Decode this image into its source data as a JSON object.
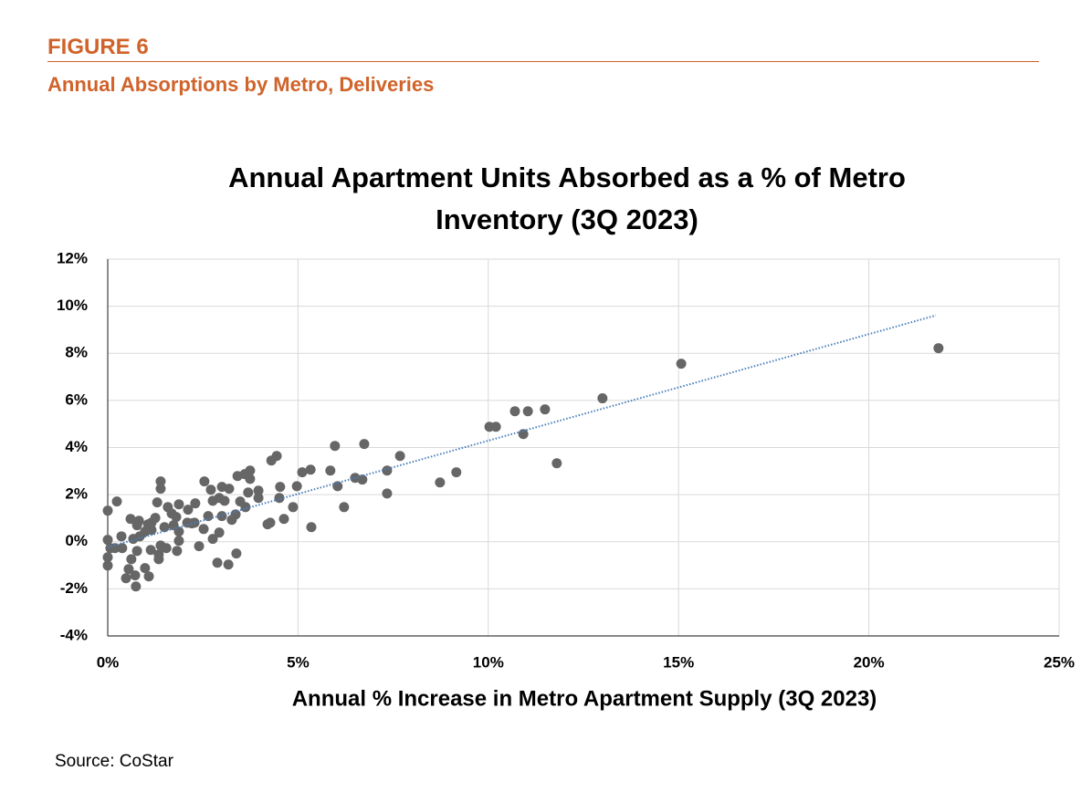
{
  "figure_label": "FIGURE 6",
  "figure_subtitle": "Annual Absorptions by Metro, Deliveries",
  "source": "Source: CoStar",
  "chart_data": {
    "type": "scatter",
    "title": "Annual Apartment Units Absorbed as a % of Metro Inventory (3Q 2023)",
    "x_label": "Annual % Increase in Metro Apartment Supply (3Q 2023)",
    "color": "#666666",
    "grid": true,
    "xlim": [
      0,
      25
    ],
    "ylim": [
      -4,
      12
    ],
    "xticks": [
      {
        "value": 0,
        "label": "0%"
      },
      {
        "value": 5,
        "label": "5%"
      },
      {
        "value": 10,
        "label": "10%"
      },
      {
        "value": 15,
        "label": "15%"
      },
      {
        "value": 20,
        "label": "20%"
      },
      {
        "value": 25,
        "label": "25%"
      }
    ],
    "yticks": [
      {
        "value": -4,
        "label": "-4%"
      },
      {
        "value": -2,
        "label": "-2%"
      },
      {
        "value": 0,
        "label": "0%"
      },
      {
        "value": 2,
        "label": "2%"
      },
      {
        "value": 4,
        "label": "4%"
      },
      {
        "value": 6,
        "label": "6%"
      },
      {
        "value": 8,
        "label": "8%"
      },
      {
        "value": 10,
        "label": "10%"
      },
      {
        "value": 12,
        "label": "12%"
      }
    ],
    "x": [
      21.83,
      15.07,
      13.0,
      11.8,
      11.49,
      11.04,
      10.7,
      10.92,
      10.03,
      10.2,
      9.16,
      8.73,
      7.68,
      7.34,
      7.34,
      6.74,
      5.97,
      6.69,
      6.5,
      5.85,
      6.04,
      6.21,
      5.33,
      5.11,
      4.97,
      4.87,
      5.35,
      4.63,
      4.44,
      4.3,
      4.53,
      4.51,
      4.27,
      4.2,
      3.96,
      3.96,
      3.74,
      3.74,
      3.69,
      3.6,
      3.41,
      3.62,
      3.48,
      3.38,
      3.17,
      2.88,
      2.93,
      2.76,
      2.52,
      2.4,
      2.54,
      2.71,
      3.0,
      3.19,
      2.93,
      3.07,
      2.76,
      2.3,
      2.11,
      2.21,
      1.87,
      1.87,
      1.82,
      1.54,
      1.39,
      1.68,
      1.8,
      1.58,
      1.39,
      1.39,
      1.3,
      1.25,
      1.15,
      1.06,
      0.98,
      1.15,
      1.34,
      1.34,
      1.13,
      1.08,
      0.98,
      0.72,
      0.74,
      0.77,
      0.62,
      0.48,
      0.55,
      0.38,
      0.36,
      0.19,
      0.24,
      0,
      0,
      0,
      0,
      0.07,
      0.6,
      0.82,
      0.77,
      1.49,
      0.84,
      0.67,
      2.09,
      2.28,
      1.73,
      3.26,
      3.36,
      3.0,
      2.64,
      1.87
    ],
    "values": [
      8.22,
      7.56,
      6.09,
      3.33,
      5.62,
      5.54,
      5.54,
      4.57,
      4.88,
      4.88,
      2.95,
      2.52,
      3.64,
      3.02,
      2.05,
      4.15,
      4.07,
      2.64,
      2.71,
      3.02,
      2.36,
      1.47,
      3.06,
      2.95,
      2.36,
      1.47,
      0.62,
      0.97,
      3.64,
      3.45,
      2.33,
      1.86,
      0.81,
      0.74,
      2.17,
      1.86,
      3.02,
      2.67,
      2.09,
      2.87,
      2.79,
      1.47,
      1.71,
      -0.5,
      -0.97,
      -0.89,
      0.39,
      0.12,
      0.54,
      -0.19,
      2.56,
      2.21,
      2.33,
      2.25,
      1.86,
      1.74,
      1.74,
      1.63,
      1.36,
      0.78,
      0.43,
      0.04,
      -0.39,
      -0.27,
      -0.16,
      1.2,
      1.05,
      1.47,
      2.56,
      2.25,
      1.67,
      1.01,
      0.81,
      0.74,
      0.43,
      0.5,
      -0.54,
      -0.74,
      -0.35,
      -1.47,
      -1.12,
      -1.43,
      -1.9,
      -0.39,
      -0.74,
      -1.55,
      -1.16,
      -0.27,
      0.23,
      -0.27,
      1.71,
      1.32,
      0.08,
      -0.66,
      -1.01,
      -0.27,
      0.97,
      0.89,
      0.7,
      0.62,
      0.23,
      0.12,
      0.81,
      0.81,
      0.7,
      0.93,
      1.16,
      1.09,
      1.09,
      1.59
    ],
    "trendline": {
      "x": [
        0,
        21.76
      ],
      "values": [
        -0.23,
        9.61
      ],
      "color": "#4a7ebb"
    }
  }
}
